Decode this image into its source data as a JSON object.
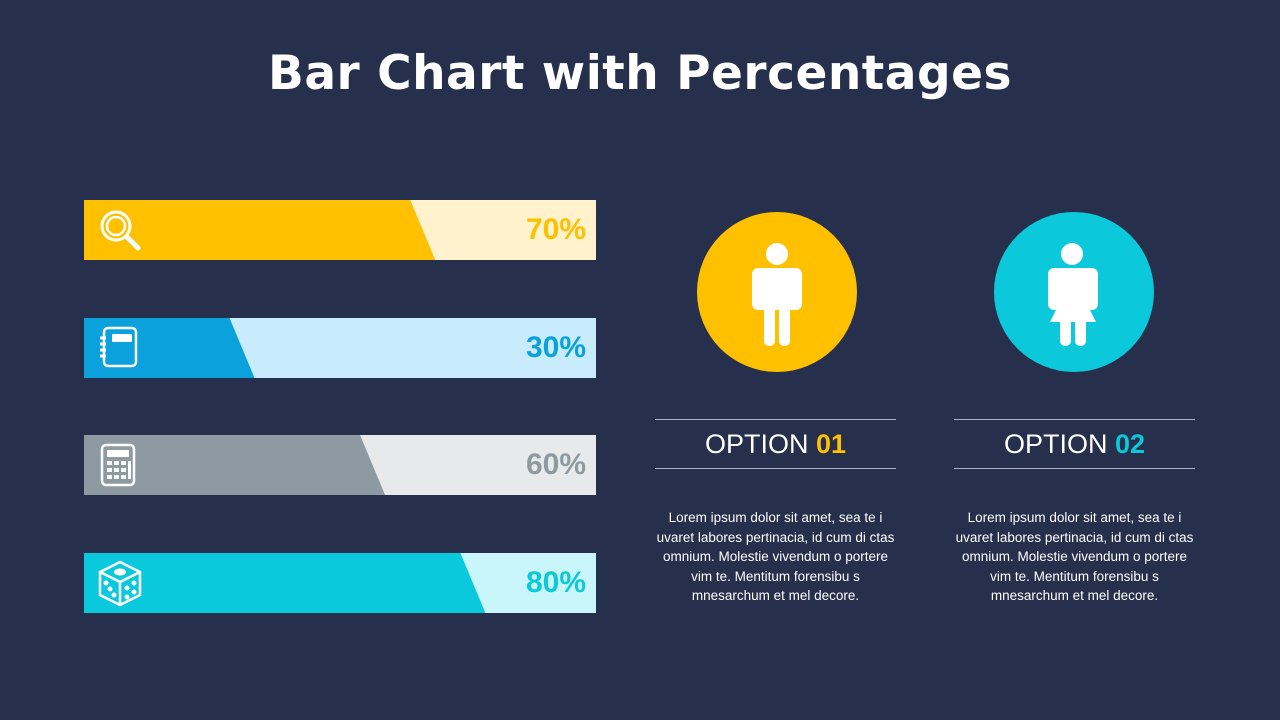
{
  "title": "Bar Chart with Percentages",
  "chart_data": {
    "type": "bar",
    "orientation": "horizontal",
    "title": "Bar Chart with Percentages",
    "categories": [
      "search",
      "notebook",
      "calculator",
      "dice"
    ],
    "values": [
      70,
      30,
      60,
      80
    ],
    "labels": [
      "70%",
      "30%",
      "60%",
      "80%"
    ],
    "xlim": [
      0,
      100
    ],
    "colors": [
      {
        "fill": "#ffc000",
        "bg": "#fff2cc",
        "text": "#ffc000"
      },
      {
        "fill": "#0aa1dd",
        "bg": "#c8ecfc",
        "text": "#0aa1dd"
      },
      {
        "fill": "#8e9aa2",
        "bg": "#e8e9eb",
        "text": "#8e9aa2"
      },
      {
        "fill": "#0bc9dc",
        "bg": "#c9f6fb",
        "text": "#0bc9dc"
      }
    ],
    "icons": [
      "search-icon",
      "notebook-icon",
      "calculator-icon",
      "dice-icon"
    ]
  },
  "options": [
    {
      "label": "OPTION",
      "number": "01",
      "color": "#ffc000",
      "icon": "male-icon",
      "text": "Lorem ipsum dolor sit amet, sea te i uvaret labores pertinacia, id cum di ctas omnium. Molestie vivendum o portere vim te. Mentitum forensibu s mnesarchum et mel decore."
    },
    {
      "label": "OPTION",
      "number": "02",
      "color": "#0bc8da",
      "icon": "female-icon",
      "text": "Lorem ipsum dolor sit amet, sea te i uvaret labores pertinacia, id cum di ctas omnium. Molestie vivendum o portere vim te. Mentitum forensibu s mnesarchum et mel decore."
    }
  ]
}
